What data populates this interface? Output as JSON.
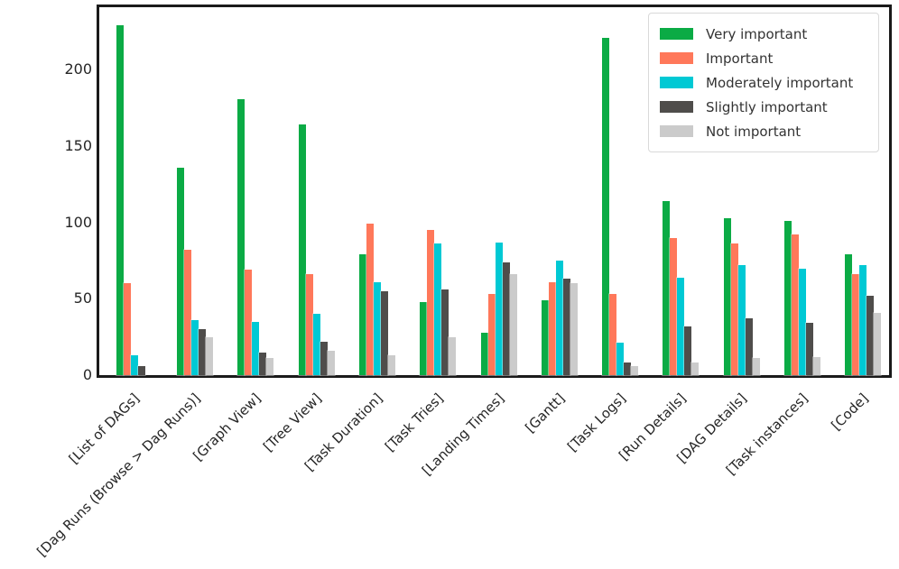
{
  "chart_data": {
    "type": "bar",
    "title": "",
    "xlabel": "",
    "ylabel": "",
    "categories": [
      "[List of DAGs]",
      "[Dag Runs (Browse > Dag Runs)]",
      "[Graph View]",
      "[Tree View]",
      "[Task Duration]",
      "[Task Tries]",
      "[Landing Times]",
      "[Gantt]",
      "[Task Logs]",
      "[Run Details]",
      "[DAG Details]",
      "[Task instances]",
      "[Code]"
    ],
    "series": [
      {
        "name": "Very important",
        "color": "#0bab45",
        "values": [
          229,
          136,
          181,
          164,
          79,
          48,
          28,
          49,
          221,
          114,
          103,
          101,
          79
        ]
      },
      {
        "name": "Important",
        "color": "#ff785a",
        "values": [
          60,
          82,
          69,
          66,
          99,
          95,
          53,
          61,
          53,
          90,
          86,
          92,
          66
        ]
      },
      {
        "name": "Moderately important",
        "color": "#00c9d4",
        "values": [
          13,
          36,
          35,
          40,
          61,
          86,
          87,
          75,
          21,
          64,
          72,
          70,
          72
        ]
      },
      {
        "name": "Slightly important",
        "color": "#4f4d4b",
        "values": [
          6,
          30,
          15,
          22,
          55,
          56,
          74,
          63,
          8,
          32,
          37,
          34,
          52
        ]
      },
      {
        "name": "Not important",
        "color": "#cbcbcb",
        "values": [
          0,
          25,
          11,
          16,
          13,
          25,
          66,
          60,
          6,
          8,
          11,
          12,
          41
        ]
      }
    ],
    "yticks": [
      0,
      50,
      100,
      150,
      200
    ],
    "ylim": [
      0,
      241
    ],
    "grid": false,
    "legend_position": "upper right",
    "axis_color": "#1a1a1a",
    "tick_label_color": "#262626"
  }
}
